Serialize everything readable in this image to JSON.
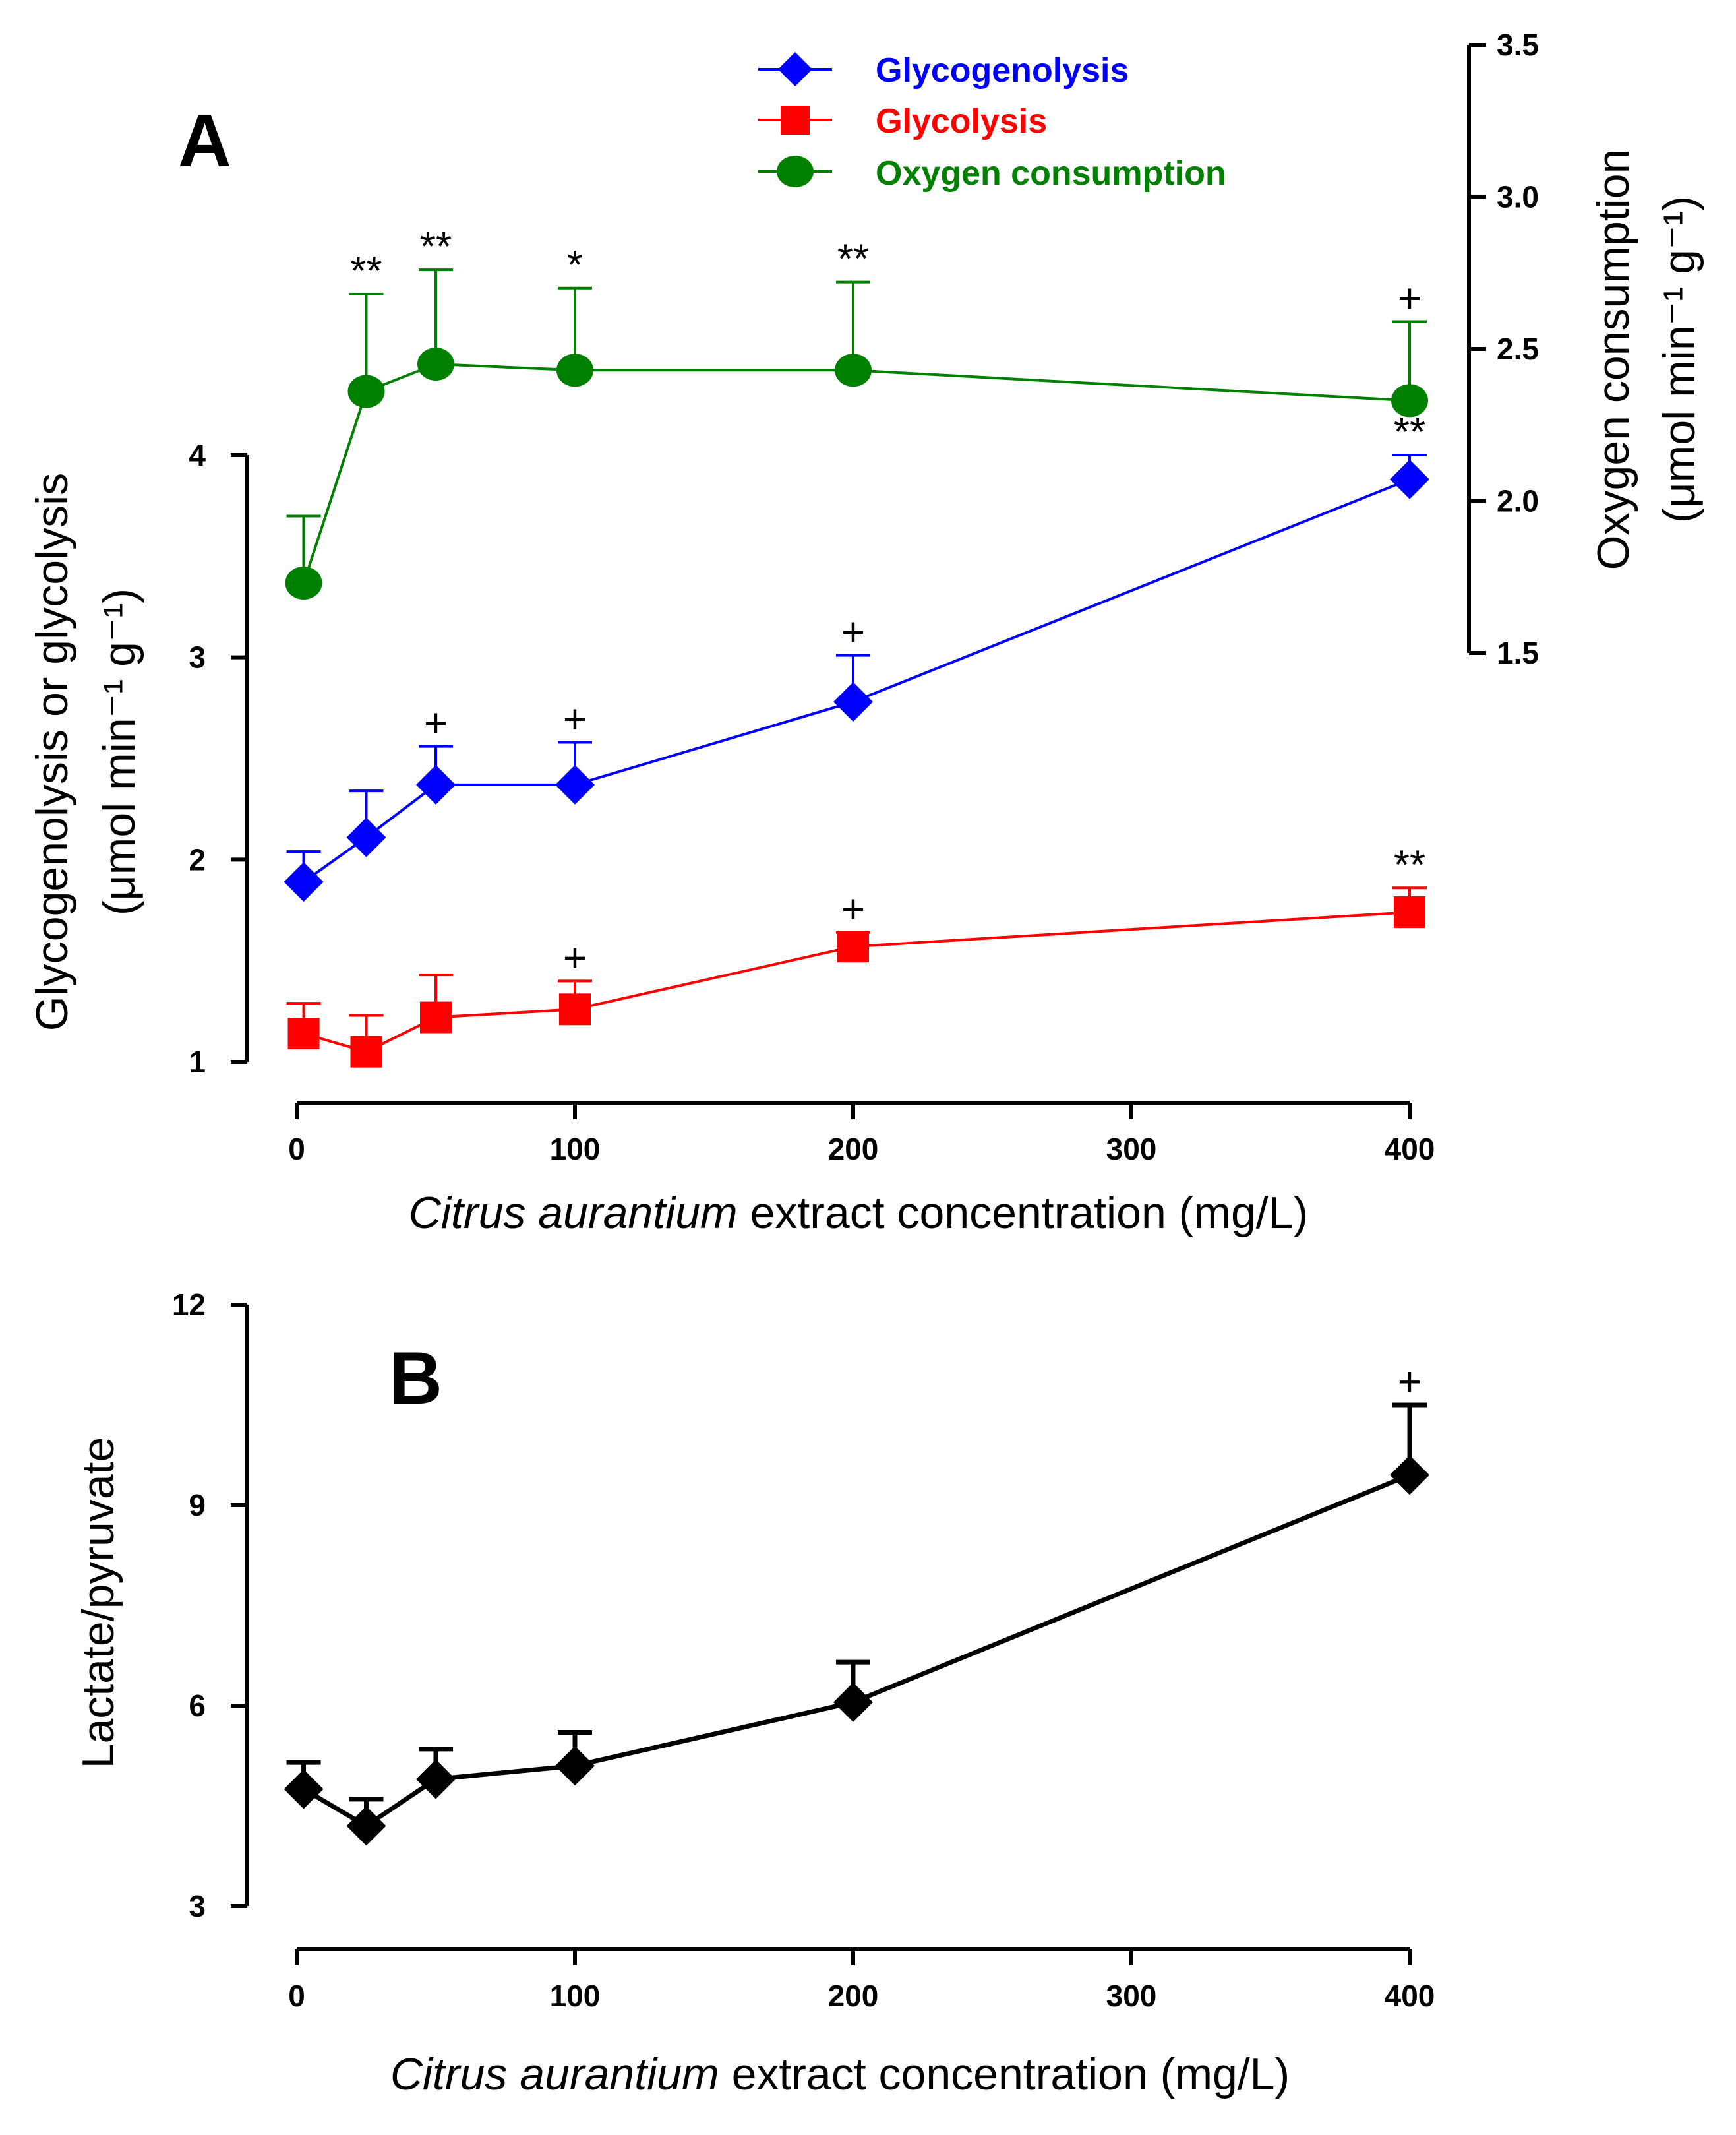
{
  "chart_data": [
    {
      "type": "line",
      "panel_label": "A",
      "xlabel_italic": "Citrus aurantium",
      "xlabel_rest": " extract concentration (mg/L)",
      "ylabel_line1": "Glycogenolysis or glycolysis",
      "ylabel_line2": "(μmol min⁻¹ g⁻¹)",
      "y2label_line1": "Oxygen consumption",
      "y2label_line2": "(μmol min⁻¹ g⁻¹)",
      "xlim": [
        0,
        400
      ],
      "xticks": [
        0,
        100,
        200,
        300,
        400
      ],
      "ylim": [
        1,
        4
      ],
      "yticks": [
        1,
        2,
        3,
        4
      ],
      "y2lim": [
        1.5,
        3.5
      ],
      "y2ticks": [
        "1.5",
        "2.0",
        "2.5",
        "3.0",
        "3.5"
      ],
      "legend_position": "top-right",
      "series": [
        {
          "name": "Glycogenolysis",
          "axis": "left",
          "color": "#0000ff",
          "marker": "diamond",
          "x": [
            2.5,
            25,
            50,
            100,
            200,
            400
          ],
          "y": [
            1.89,
            2.11,
            2.37,
            2.37,
            2.78,
            3.88
          ],
          "err": [
            0.15,
            0.23,
            0.19,
            0.21,
            0.23,
            0.12
          ],
          "annotations": [
            "",
            "",
            "+",
            "+",
            "+",
            "**"
          ]
        },
        {
          "name": "Glycolysis",
          "axis": "left",
          "color": "#ff0000",
          "marker": "square",
          "x": [
            2.5,
            25,
            50,
            100,
            200,
            400
          ],
          "y": [
            1.14,
            1.05,
            1.22,
            1.26,
            1.57,
            1.74
          ],
          "err": [
            0.15,
            0.18,
            0.21,
            0.14,
            0.07,
            0.12
          ],
          "annotations": [
            "",
            "",
            "",
            "+",
            "+",
            "**"
          ]
        },
        {
          "name": "Oxygen consumption",
          "axis": "right",
          "color": "#008000",
          "marker": "circle",
          "x": [
            2.5,
            25,
            50,
            100,
            200,
            400
          ],
          "y": [
            1.73,
            2.36,
            2.45,
            2.43,
            2.43,
            2.33
          ],
          "err": [
            0.22,
            0.32,
            0.31,
            0.27,
            0.29,
            0.26
          ],
          "annotations": [
            "",
            "**",
            "**",
            "*",
            "**",
            "+"
          ]
        }
      ]
    },
    {
      "type": "line",
      "panel_label": "B",
      "xlabel_italic": "Citrus aurantium",
      "xlabel_rest": " extract concentration (mg/L)",
      "ylabel": "Lactate/pyruvate",
      "xlim": [
        0,
        400
      ],
      "xticks": [
        0,
        100,
        200,
        300,
        400
      ],
      "ylim": [
        3,
        12
      ],
      "yticks": [
        3,
        6,
        9,
        12
      ],
      "series": [
        {
          "name": "Lactate/pyruvate",
          "color": "#000000",
          "marker": "diamond",
          "x": [
            2.5,
            25,
            50,
            100,
            200,
            400
          ],
          "y": [
            4.75,
            4.2,
            4.9,
            5.1,
            6.05,
            9.45
          ],
          "err": [
            0.4,
            0.4,
            0.45,
            0.5,
            0.6,
            1.05
          ],
          "annotations": [
            "",
            "",
            "",
            "",
            "",
            "+"
          ]
        }
      ]
    }
  ]
}
